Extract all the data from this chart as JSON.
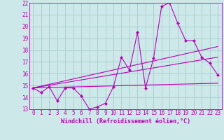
{
  "background_color": "#cce8e8",
  "grid_color": "#aacccc",
  "line_color": "#bb00bb",
  "marker_color": "#bb00bb",
  "xlabel": "Windchill (Refroidissement éolien,°C)",
  "xlabel_fontsize": 6.0,
  "tick_fontsize": 5.5,
  "xlim": [
    -0.5,
    23.5
  ],
  "ylim": [
    13,
    22
  ],
  "yticks": [
    13,
    14,
    15,
    16,
    17,
    18,
    19,
    20,
    21,
    22
  ],
  "xticks": [
    0,
    1,
    2,
    3,
    4,
    5,
    6,
    7,
    8,
    9,
    10,
    11,
    12,
    13,
    14,
    15,
    16,
    17,
    18,
    19,
    20,
    21,
    22,
    23
  ],
  "series1_x": [
    0,
    1,
    2,
    3,
    4,
    5,
    6,
    7,
    8,
    9,
    10,
    11,
    12,
    13,
    14,
    15,
    16,
    17,
    18,
    19,
    20,
    21,
    22,
    23
  ],
  "series1_y": [
    14.8,
    14.4,
    14.9,
    13.7,
    14.8,
    14.8,
    14.1,
    13.0,
    13.2,
    13.5,
    14.9,
    17.4,
    16.3,
    19.5,
    14.8,
    17.3,
    21.7,
    22.0,
    20.3,
    18.8,
    18.8,
    17.4,
    16.9,
    15.9
  ],
  "series2_x": [
    0,
    23
  ],
  "series2_y": [
    14.8,
    15.2
  ],
  "series3_x": [
    0,
    23
  ],
  "series3_y": [
    14.8,
    18.3
  ],
  "series4_x": [
    0,
    23
  ],
  "series4_y": [
    14.8,
    17.4
  ]
}
